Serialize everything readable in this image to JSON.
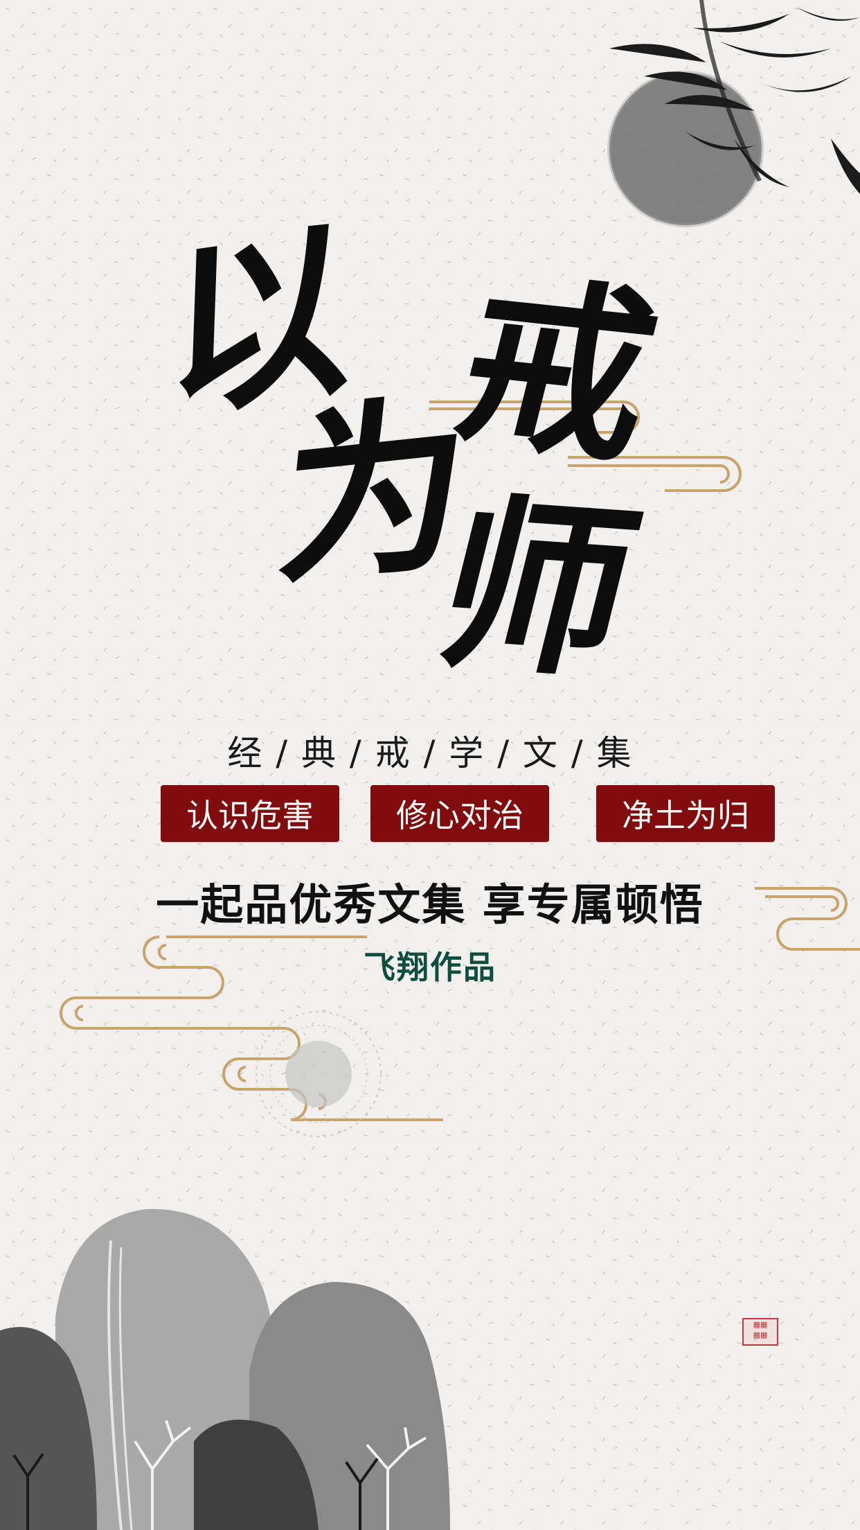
{
  "title": {
    "chars": [
      "以",
      "戒",
      "为",
      "师"
    ]
  },
  "subtitle": "经 / 典 / 戒 / 学 / 文 / 集",
  "tags": [
    "认识危害",
    "修心对治",
    "净土为归"
  ],
  "slogan": "一起品优秀文集 享专属顿悟",
  "author": "飞翔作品",
  "colors": {
    "background": "#f1f0ee",
    "ink": "#0d0d0d",
    "tag_red": "#800c0e",
    "author_green": "#0f4d3e",
    "cloud_gold": "#c9a46a",
    "seal_red": "#c0393b"
  }
}
